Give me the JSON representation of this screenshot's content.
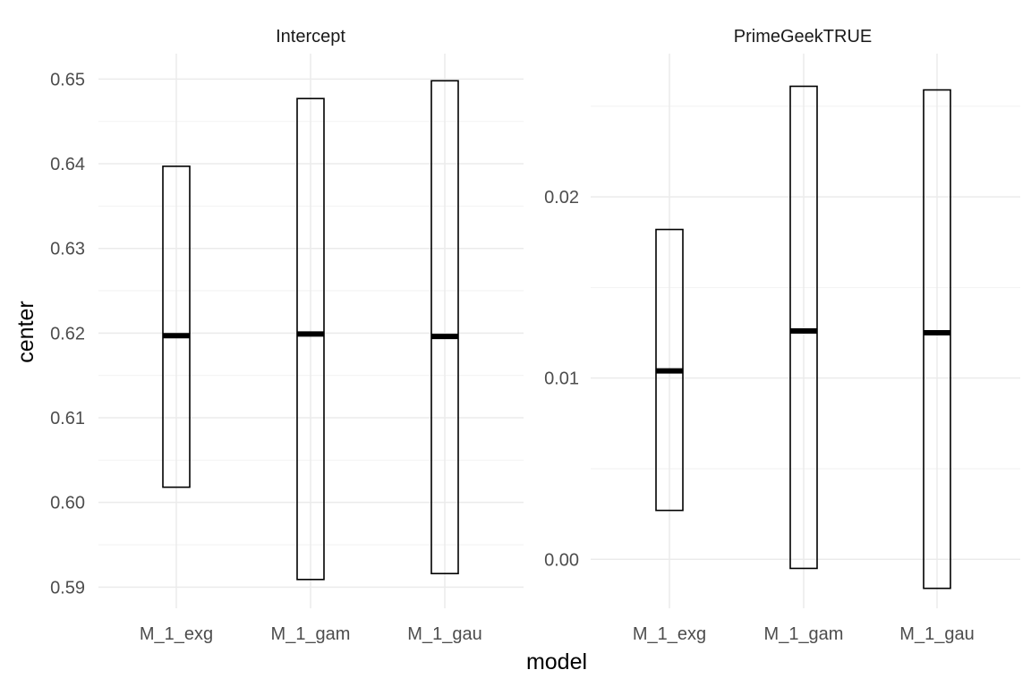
{
  "chart_data": {
    "type": "box",
    "xlabel": "model",
    "ylabel": "center",
    "categories": [
      "M_1_exg",
      "M_1_gam",
      "M_1_gau"
    ],
    "grid": true,
    "panels": [
      {
        "title": "Intercept",
        "ylim": [
          0.5875,
          0.653
        ],
        "yticks": [
          0.59,
          0.6,
          0.61,
          0.62,
          0.63,
          0.64,
          0.65
        ],
        "ytick_labels": [
          "0.59",
          "0.60",
          "0.61",
          "0.62",
          "0.63",
          "0.64",
          "0.65"
        ],
        "boxes": [
          {
            "category": "M_1_exg",
            "lower": 0.6018,
            "center": 0.6197,
            "upper": 0.6397
          },
          {
            "category": "M_1_gam",
            "lower": 0.5909,
            "center": 0.6199,
            "upper": 0.6477
          },
          {
            "category": "M_1_gau",
            "lower": 0.5916,
            "center": 0.6196,
            "upper": 0.6498
          }
        ]
      },
      {
        "title": "PrimeGeekTRUE",
        "ylim": [
          -0.0027,
          0.0279
        ],
        "yticks": [
          0.0,
          0.01,
          0.02
        ],
        "ytick_labels": [
          "0.00",
          "0.01",
          "0.02"
        ],
        "boxes": [
          {
            "category": "M_1_exg",
            "lower": 0.0027,
            "center": 0.0104,
            "upper": 0.0182
          },
          {
            "category": "M_1_gam",
            "lower": -0.0005,
            "center": 0.0126,
            "upper": 0.0261
          },
          {
            "category": "M_1_gau",
            "lower": -0.0016,
            "center": 0.0125,
            "upper": 0.0259
          }
        ]
      }
    ]
  }
}
